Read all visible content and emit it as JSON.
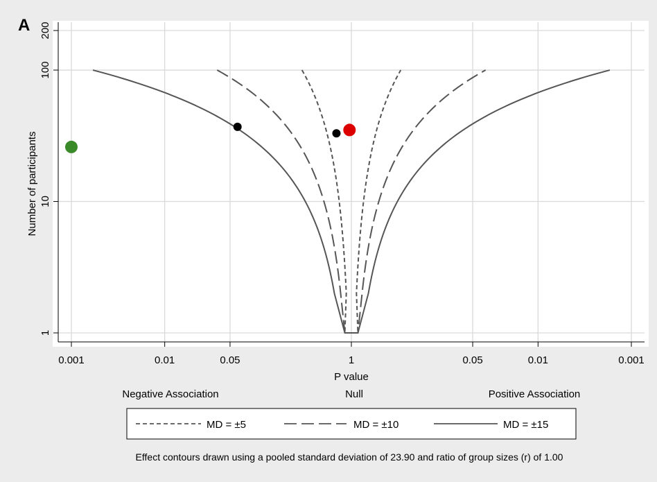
{
  "panel_label": "A",
  "colors": {
    "figure_bg": "#ececec",
    "plot_bg": "#ffffff",
    "grid": "#d9d9d9",
    "contour": "#555555",
    "point_black": "#000000",
    "point_red": "#dd0000",
    "point_green": "#3a8a2a"
  },
  "chart_data": {
    "type": "scatter",
    "title": "",
    "xlabel": "P value",
    "ylabel": "Number of participants",
    "y_scale": "log",
    "x_scale": "two-sided p-value (effect direction)",
    "grid": true,
    "x_ticks": [
      {
        "pos": -3,
        "label": "0.001"
      },
      {
        "pos": -2,
        "label": "0.01"
      },
      {
        "pos": -1.3,
        "label": "0.05"
      },
      {
        "pos": 0,
        "label": "1"
      },
      {
        "pos": 1.3,
        "label": "0.05"
      },
      {
        "pos": 2,
        "label": "0.01"
      },
      {
        "pos": 3,
        "label": "0.001"
      }
    ],
    "y_ticks": [
      {
        "value": 1,
        "label": "1"
      },
      {
        "value": 10,
        "label": "10"
      },
      {
        "value": 100,
        "label": "100"
      },
      {
        "value": 200,
        "label": "200"
      }
    ],
    "xlim": [
      -3.1,
      3.1
    ],
    "ylim": [
      0.8,
      200
    ],
    "direction_labels": [
      {
        "key": "negative",
        "label": "Negative Association"
      },
      {
        "key": "null",
        "label": "Null"
      },
      {
        "key": "positive",
        "label": "Positive Association"
      }
    ],
    "contours": [
      {
        "name": "MD = ±5",
        "md": 5,
        "dash": "6,4"
      },
      {
        "name": "MD = ±10",
        "md": 10,
        "dash": "18,7"
      },
      {
        "name": "MD = ±15",
        "md": 15,
        "dash": ""
      }
    ],
    "pooled_sd": 23.9,
    "group_ratio": 1.0,
    "points": [
      {
        "x": -3.0,
        "y": 26,
        "color": "green"
      },
      {
        "x": -1.22,
        "y": 37,
        "color": "black"
      },
      {
        "x": -0.16,
        "y": 33,
        "color": "black"
      },
      {
        "x": -0.02,
        "y": 35,
        "color": "red"
      }
    ]
  },
  "legend": {
    "items": [
      {
        "label": "MD = ±5"
      },
      {
        "label": "MD = ±10"
      },
      {
        "label": "MD = ±15"
      }
    ]
  },
  "caption": "Effect contours drawn using a pooled standard deviation of 23.90 and ratio of group sizes (r) of 1.00"
}
